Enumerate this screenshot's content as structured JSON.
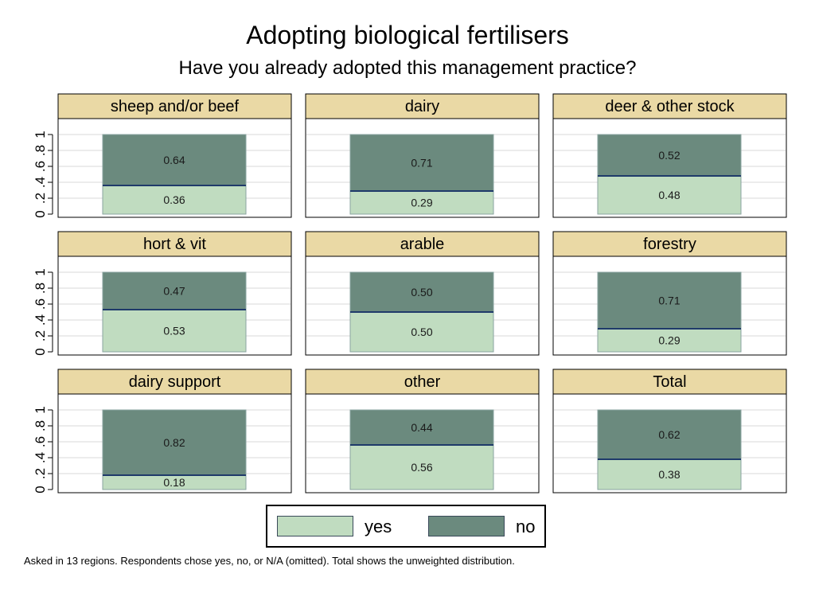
{
  "title": "Adopting biological fertilisers",
  "subtitle": "Have you already adopted this management practice?",
  "note": "Asked in 13 regions. Respondents chose yes, no, or N/A (omitted). Total shows the unweighted distribution.",
  "legend": {
    "yes_label": "yes",
    "no_label": "no"
  },
  "colors": {
    "yes": "#c0dcc0",
    "no": "#6b8a7e",
    "header_bg": "#ead9a5",
    "grid": "#dadada",
    "bar_edge": "#1f3a6a"
  },
  "chart_data": {
    "type": "bar",
    "stacked": true,
    "ylim": [
      0,
      1
    ],
    "yticks": [
      "0",
      ".2",
      ".4",
      ".6",
      ".8",
      "1"
    ],
    "grid": true,
    "legend_position": "bottom",
    "panels": [
      {
        "label": "sheep and/or beef",
        "yes": 0.36,
        "no": 0.64,
        "yes_text": "0.36",
        "no_text": "0.64"
      },
      {
        "label": "dairy",
        "yes": 0.29,
        "no": 0.71,
        "yes_text": "0.29",
        "no_text": "0.71"
      },
      {
        "label": "deer & other stock",
        "yes": 0.48,
        "no": 0.52,
        "yes_text": "0.48",
        "no_text": "0.52"
      },
      {
        "label": "hort & vit",
        "yes": 0.53,
        "no": 0.47,
        "yes_text": "0.53",
        "no_text": "0.47"
      },
      {
        "label": "arable",
        "yes": 0.5,
        "no": 0.5,
        "yes_text": "0.50",
        "no_text": "0.50"
      },
      {
        "label": "forestry",
        "yes": 0.29,
        "no": 0.71,
        "yes_text": "0.29",
        "no_text": "0.71"
      },
      {
        "label": "dairy support",
        "yes": 0.18,
        "no": 0.82,
        "yes_text": "0.18",
        "no_text": "0.82"
      },
      {
        "label": "other",
        "yes": 0.56,
        "no": 0.44,
        "yes_text": "0.56",
        "no_text": "0.44"
      },
      {
        "label": "Total",
        "yes": 0.38,
        "no": 0.62,
        "yes_text": "0.38",
        "no_text": "0.62"
      }
    ]
  }
}
